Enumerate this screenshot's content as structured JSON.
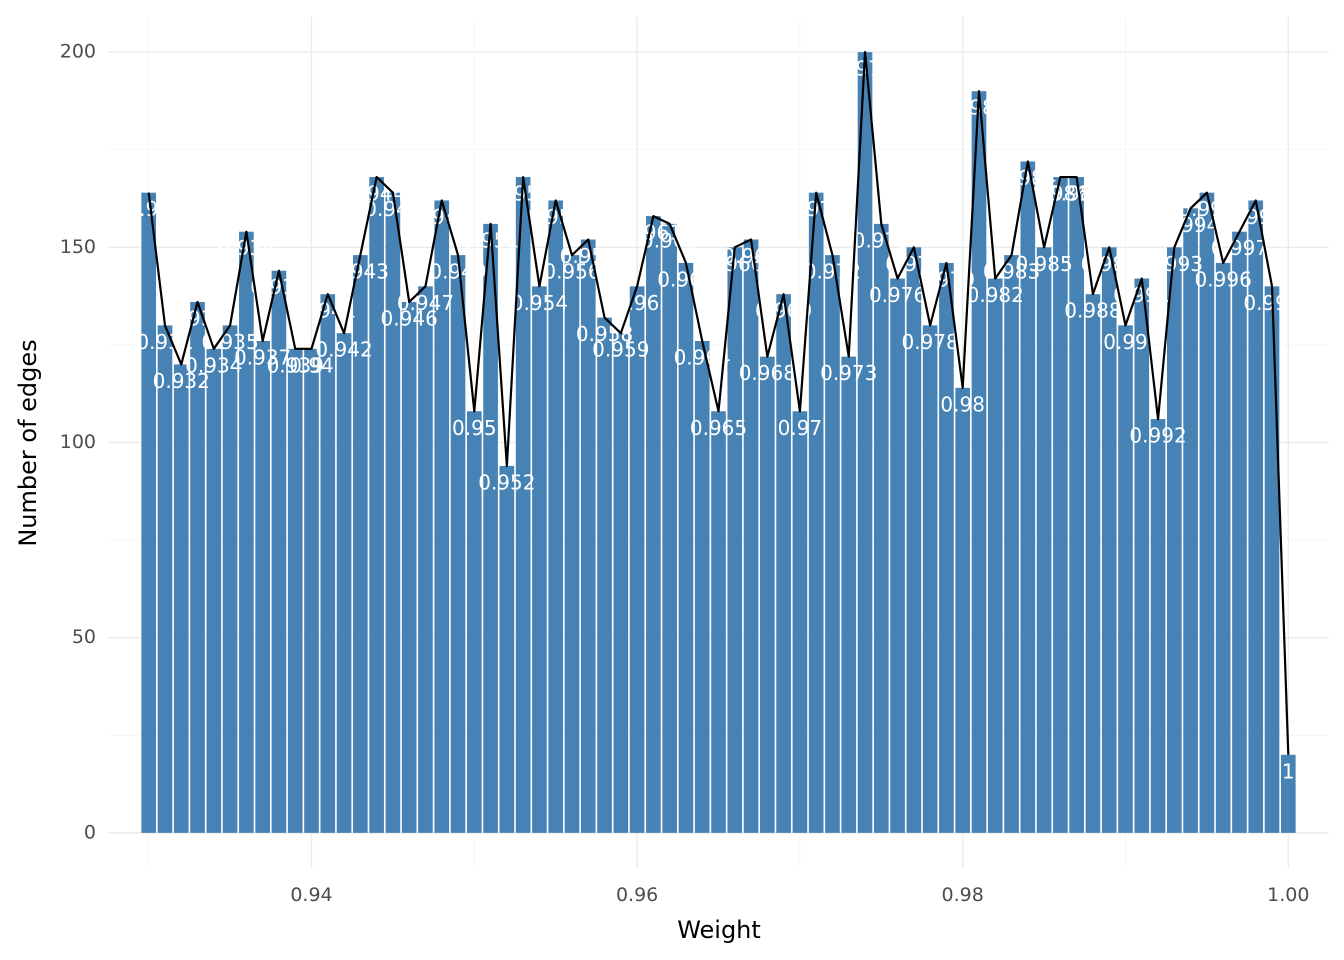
{
  "chart_data": {
    "type": "bar",
    "xlabel": "Weight",
    "ylabel": "Number of edges",
    "xlim": [
      0.9275,
      1.0025
    ],
    "ylim": [
      -9,
      209
    ],
    "x_ticks": [
      0.94,
      0.96,
      0.98,
      1.0
    ],
    "x_tick_labels": [
      "0.94",
      "0.96",
      "0.98",
      "1.00"
    ],
    "y_ticks": [
      0,
      50,
      100,
      150,
      200
    ],
    "y_tick_labels": [
      "0",
      "50",
      "100",
      "150",
      "200"
    ],
    "bar_width": 0.0009,
    "grid": true,
    "legend": "none",
    "overlay": "line through bar tops",
    "colors": {
      "bar": "#4682b4",
      "line": "#000000",
      "bar_label": "#ffffff",
      "grid": "#ebebeb"
    },
    "x": [
      0.93,
      0.931,
      0.932,
      0.933,
      0.934,
      0.935,
      0.936,
      0.937,
      0.938,
      0.939,
      0.94,
      0.941,
      0.942,
      0.943,
      0.944,
      0.945,
      0.946,
      0.947,
      0.948,
      0.949,
      0.95,
      0.951,
      0.952,
      0.953,
      0.954,
      0.955,
      0.956,
      0.957,
      0.958,
      0.959,
      0.96,
      0.961,
      0.962,
      0.963,
      0.964,
      0.965,
      0.966,
      0.967,
      0.968,
      0.969,
      0.97,
      0.971,
      0.972,
      0.973,
      0.974,
      0.975,
      0.976,
      0.977,
      0.978,
      0.979,
      0.98,
      0.981,
      0.982,
      0.983,
      0.984,
      0.985,
      0.986,
      0.987,
      0.988,
      0.989,
      0.99,
      0.991,
      0.992,
      0.993,
      0.994,
      0.995,
      0.996,
      0.997,
      0.998,
      0.999,
      1.0
    ],
    "values": [
      164,
      130,
      120,
      136,
      124,
      130,
      154,
      126,
      144,
      124,
      124,
      138,
      128,
      148,
      168,
      164,
      136,
      140,
      162,
      148,
      108,
      156,
      94,
      168,
      140,
      162,
      148,
      152,
      132,
      128,
      140,
      158,
      156,
      146,
      126,
      108,
      150,
      152,
      122,
      138,
      108,
      164,
      148,
      122,
      200,
      156,
      142,
      150,
      130,
      146,
      114,
      190,
      142,
      148,
      172,
      150,
      168,
      168,
      138,
      150,
      130,
      142,
      106,
      150,
      160,
      164,
      146,
      154,
      162,
      140,
      20
    ],
    "labels": [
      "0.93",
      "0.931",
      "0.932",
      "0.933",
      "0.934",
      "0.935",
      "0.936",
      "0.937",
      "0.938",
      "0.939",
      "0.94",
      "0.941",
      "0.942",
      "0.943",
      "0.944",
      "0.945",
      "0.946",
      "0.947",
      "0.948",
      "0.949",
      "0.95",
      "0.951",
      "0.952",
      "0.953",
      "0.954",
      "0.955",
      "0.956",
      "0.957",
      "0.958",
      "0.959",
      "0.96",
      "0.961",
      "0.962",
      "0.963",
      "0.964",
      "0.965",
      "0.966",
      "0.967",
      "0.968",
      "0.969",
      "0.97",
      "0.971",
      "0.972",
      "0.973",
      "0.974",
      "0.975",
      "0.976",
      "0.977",
      "0.978",
      "0.979",
      "0.98",
      "0.981",
      "0.982",
      "0.983",
      "0.984",
      "0.985",
      "0.986",
      "0.987",
      "0.988",
      "0.989",
      "0.99",
      "0.991",
      "0.992",
      "0.993",
      "0.994",
      "0.995",
      "0.996",
      "0.997",
      "0.998",
      "0.999",
      "1"
    ]
  }
}
